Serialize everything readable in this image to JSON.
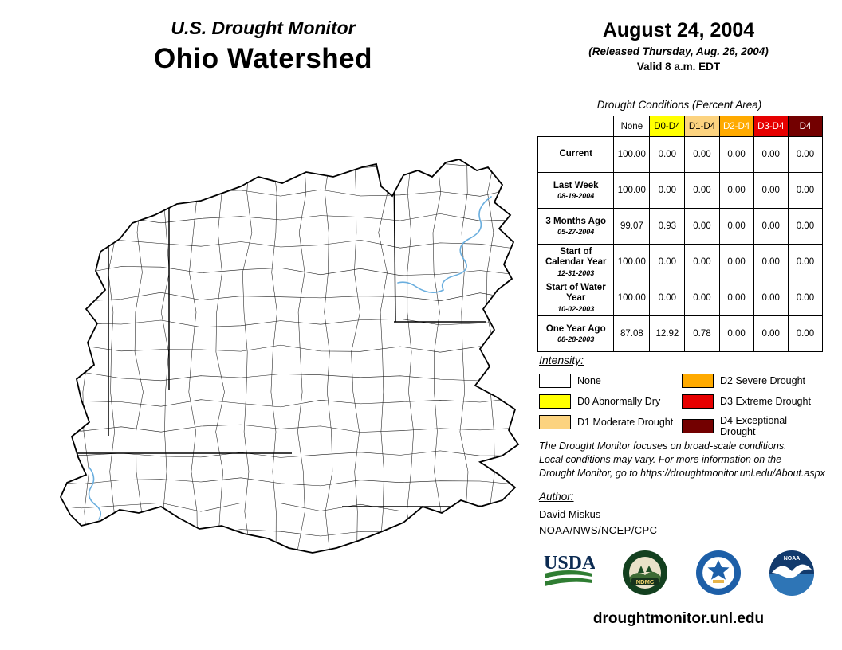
{
  "header": {
    "app_title": "U.S. Drought Monitor",
    "region_title": "Ohio Watershed"
  },
  "date_block": {
    "date": "August 24, 2004",
    "released": "(Released Thursday, Aug. 26, 2004)",
    "valid": "Valid 8 a.m. EDT"
  },
  "table": {
    "title": "Drought Conditions (Percent Area)",
    "columns": [
      "None",
      "D0-D4",
      "D1-D4",
      "D2-D4",
      "D3-D4",
      "D4"
    ],
    "column_colors": [
      "#ffffff",
      "#ffff00",
      "#fcd37f",
      "#ffaa00",
      "#e60000",
      "#730000"
    ],
    "column_text_colors": [
      "#000000",
      "#000000",
      "#000000",
      "#ffffff",
      "#ffffff",
      "#ffffff"
    ],
    "rows": [
      {
        "label": "Current",
        "sub": "",
        "values": [
          "100.00",
          "0.00",
          "0.00",
          "0.00",
          "0.00",
          "0.00"
        ]
      },
      {
        "label": "Last Week",
        "sub": "08-19-2004",
        "values": [
          "100.00",
          "0.00",
          "0.00",
          "0.00",
          "0.00",
          "0.00"
        ]
      },
      {
        "label": "3 Months Ago",
        "sub": "05-27-2004",
        "values": [
          "99.07",
          "0.93",
          "0.00",
          "0.00",
          "0.00",
          "0.00"
        ]
      },
      {
        "label": "Start of Calendar Year",
        "sub": "12-31-2003",
        "values": [
          "100.00",
          "0.00",
          "0.00",
          "0.00",
          "0.00",
          "0.00"
        ]
      },
      {
        "label": "Start of Water Year",
        "sub": "10-02-2003",
        "values": [
          "100.00",
          "0.00",
          "0.00",
          "0.00",
          "0.00",
          "0.00"
        ]
      },
      {
        "label": "One Year Ago",
        "sub": "08-28-2003",
        "values": [
          "87.08",
          "12.92",
          "0.78",
          "0.00",
          "0.00",
          "0.00"
        ]
      }
    ]
  },
  "legend": {
    "title": "Intensity:",
    "items": [
      {
        "label": "None",
        "color": "#ffffff"
      },
      {
        "label": "D0 Abnormally Dry",
        "color": "#ffff00"
      },
      {
        "label": "D1 Moderate Drought",
        "color": "#fcd37f"
      },
      {
        "label": "D2 Severe Drought",
        "color": "#ffaa00"
      },
      {
        "label": "D3 Extreme Drought",
        "color": "#e60000"
      },
      {
        "label": "D4 Exceptional Drought",
        "color": "#730000"
      }
    ]
  },
  "disclaimer": "The Drought Monitor focuses on broad-scale conditions.\nLocal conditions may vary. For more information on the\nDrought Monitor, go to https://droughtmonitor.unl.edu/About.aspx",
  "author": {
    "heading": "Author:",
    "name": "David Miskus",
    "org": "NOAA/NWS/NCEP/CPC"
  },
  "logos": {
    "usda": "USDA",
    "ndmc": "NDMC",
    "noaa": "NOAA"
  },
  "footer": {
    "url": "droughtmonitor.unl.edu"
  },
  "map": {
    "river_color": "#6aaede",
    "outline_color": "#000000"
  }
}
